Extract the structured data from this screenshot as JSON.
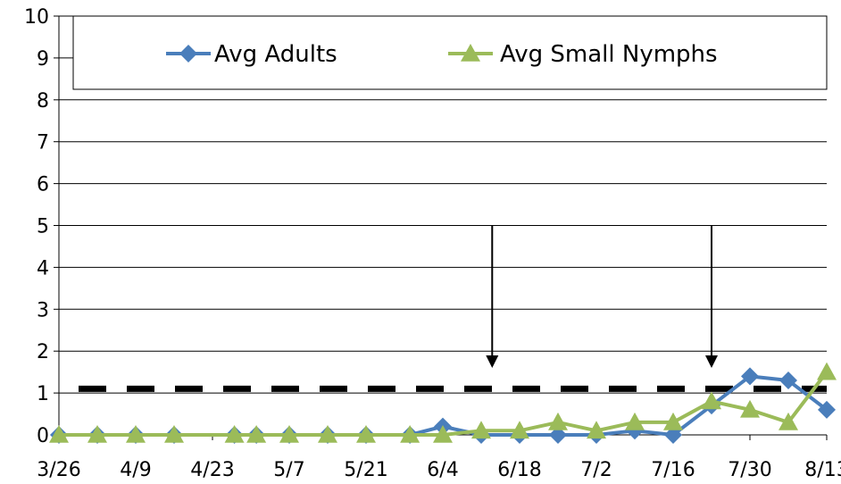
{
  "chart_data": {
    "type": "line",
    "title": "",
    "xlabel": "",
    "ylabel": "",
    "ylim": [
      0,
      10
    ],
    "y_ticks": [
      "0",
      "1",
      "2",
      "3",
      "4",
      "5",
      "6",
      "7",
      "8",
      "9",
      "10"
    ],
    "x_tick_labels": [
      "3/26",
      "4/9",
      "4/23",
      "5/7",
      "5/21",
      "6/4",
      "6/18",
      "7/2",
      "7/16",
      "7/30",
      "8/13"
    ],
    "grid": true,
    "legend_position": "top",
    "threshold": {
      "value": 1.1,
      "style": "dashed",
      "color": "#000000"
    },
    "arrows": [
      {
        "date": "6/13",
        "from": 5,
        "to": 1.6
      },
      {
        "date": "7/23",
        "from": 5,
        "to": 1.6
      }
    ],
    "series": [
      {
        "name": "Avg Adults",
        "color": "#4a7ebb",
        "marker": "diamond",
        "points": [
          [
            "3/26",
            0
          ],
          [
            "4/2",
            0
          ],
          [
            "4/9",
            0
          ],
          [
            "4/16",
            0
          ],
          [
            "4/27",
            0
          ],
          [
            "5/1",
            0
          ],
          [
            "5/7",
            0
          ],
          [
            "5/14",
            0
          ],
          [
            "5/21",
            0
          ],
          [
            "5/29",
            0
          ],
          [
            "6/4",
            0.2
          ],
          [
            "6/11",
            0
          ],
          [
            "6/18",
            0
          ],
          [
            "6/25",
            0
          ],
          [
            "7/2",
            0
          ],
          [
            "7/9",
            0.1
          ],
          [
            "7/16",
            0
          ],
          [
            "7/23",
            0.7
          ],
          [
            "7/30",
            1.4
          ],
          [
            "8/6",
            1.3
          ],
          [
            "8/13",
            0.6
          ]
        ]
      },
      {
        "name": "Avg Small Nymphs",
        "color": "#9bbb59",
        "marker": "triangle",
        "points": [
          [
            "3/26",
            0
          ],
          [
            "4/2",
            0
          ],
          [
            "4/9",
            0
          ],
          [
            "4/16",
            0
          ],
          [
            "4/27",
            0
          ],
          [
            "5/1",
            0
          ],
          [
            "5/7",
            0
          ],
          [
            "5/14",
            0
          ],
          [
            "5/21",
            0
          ],
          [
            "5/29",
            0
          ],
          [
            "6/4",
            0
          ],
          [
            "6/11",
            0.1
          ],
          [
            "6/18",
            0.1
          ],
          [
            "6/25",
            0.3
          ],
          [
            "7/2",
            0.1
          ],
          [
            "7/9",
            0.3
          ],
          [
            "7/16",
            0.3
          ],
          [
            "7/23",
            0.8
          ],
          [
            "7/30",
            0.6
          ],
          [
            "8/6",
            0.3
          ],
          [
            "8/13",
            1.5
          ]
        ]
      }
    ]
  }
}
